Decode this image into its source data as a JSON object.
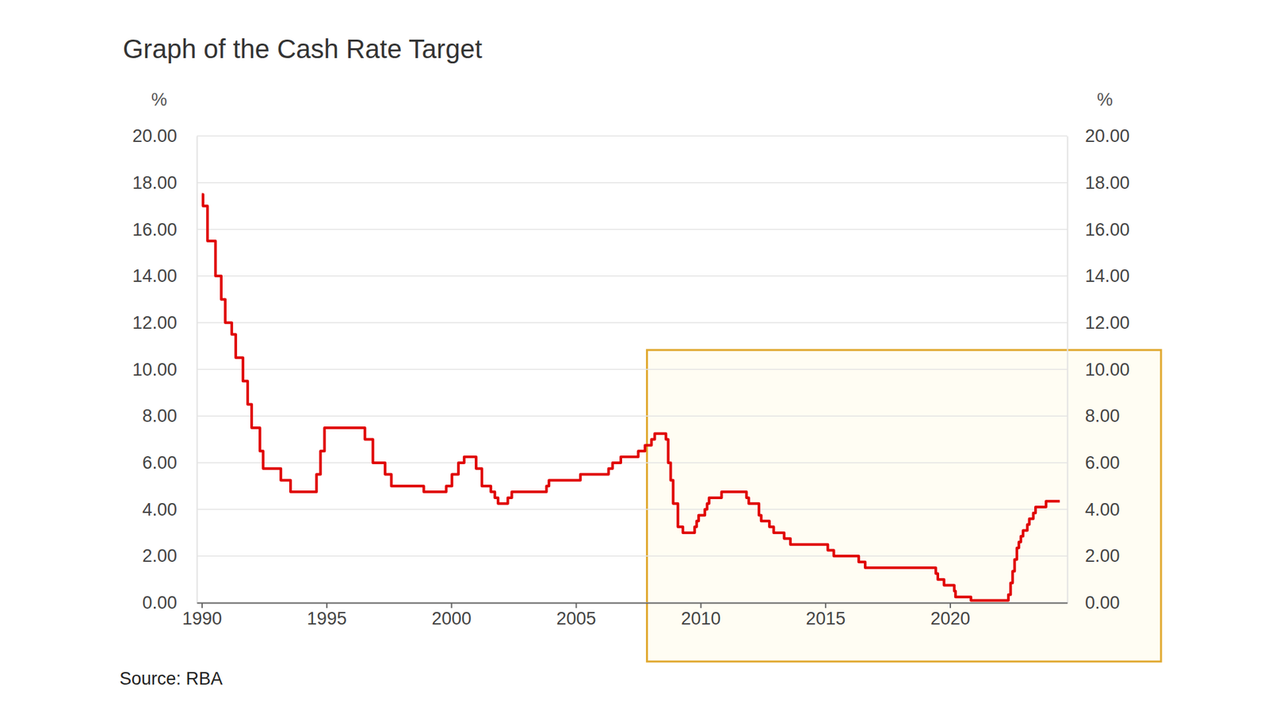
{
  "chart_data": {
    "type": "line",
    "title": "Graph of the Cash Rate Target",
    "source": "Source: RBA",
    "y_label": "%",
    "y2_label": "%",
    "color": "#e00000",
    "line_style": "step",
    "grid": true,
    "x": [
      1990.0,
      1990.05,
      1990.23,
      1990.55,
      1990.78,
      1990.94,
      1991.2,
      1991.36,
      1991.65,
      1991.84,
      1992.0,
      1992.33,
      1992.46,
      1993.17,
      1993.56,
      1994.6,
      1994.76,
      1994.92,
      1996.54,
      1996.86,
      1997.35,
      1997.6,
      1998.9,
      1999.8,
      2000.03,
      2000.29,
      2000.52,
      2001.0,
      2001.23,
      2001.59,
      2001.75,
      2001.88,
      2002.27,
      2002.43,
      2003.82,
      2003.92,
      2005.18,
      2006.31,
      2006.47,
      2006.8,
      2007.5,
      2007.77,
      2008.03,
      2008.16,
      2008.61,
      2008.7,
      2008.8,
      2008.9,
      2009.09,
      2009.29,
      2009.76,
      2009.84,
      2009.92,
      2010.17,
      2010.26,
      2010.34,
      2010.84,
      2011.84,
      2011.93,
      2012.34,
      2012.43,
      2012.76,
      2012.93,
      2013.35,
      2013.6,
      2015.1,
      2015.34,
      2016.34,
      2016.6,
      2019.43,
      2019.51,
      2019.76,
      2020.17,
      2020.22,
      2020.84,
      2022.34,
      2022.43,
      2022.51,
      2022.59,
      2022.68,
      2022.76,
      2022.84,
      2022.93,
      2023.1,
      2023.18,
      2023.34,
      2023.43,
      2023.85,
      2024.4
    ],
    "values": [
      17.5,
      17.0,
      15.5,
      14.0,
      13.0,
      12.0,
      11.5,
      10.5,
      9.5,
      8.5,
      7.5,
      6.5,
      5.75,
      5.25,
      4.75,
      5.5,
      6.5,
      7.5,
      7.0,
      6.0,
      5.5,
      5.0,
      4.75,
      5.0,
      5.5,
      6.0,
      6.25,
      5.75,
      5.0,
      4.75,
      4.5,
      4.25,
      4.5,
      4.75,
      5.0,
      5.25,
      5.5,
      5.75,
      6.0,
      6.25,
      6.5,
      6.75,
      7.0,
      7.25,
      7.0,
      6.0,
      5.25,
      4.25,
      3.25,
      3.0,
      3.25,
      3.5,
      3.75,
      4.0,
      4.25,
      4.5,
      4.75,
      4.5,
      4.25,
      3.75,
      3.5,
      3.25,
      3.0,
      2.75,
      2.5,
      2.25,
      2.0,
      1.75,
      1.5,
      1.25,
      1.0,
      0.75,
      0.5,
      0.25,
      0.1,
      0.35,
      0.85,
      1.35,
      1.85,
      2.35,
      2.6,
      2.85,
      3.1,
      3.35,
      3.6,
      3.85,
      4.1,
      4.35,
      4.35
    ],
    "xlim": [
      1989.8,
      2024.7
    ],
    "xticks": [
      1990,
      1995,
      2000,
      2005,
      2010,
      2015,
      2020
    ],
    "ylim": [
      0,
      20
    ],
    "yticks": [
      {
        "value": 0,
        "label": "0.00"
      },
      {
        "value": 2,
        "label": "2.00"
      },
      {
        "value": 4,
        "label": "4.00"
      },
      {
        "value": 6,
        "label": "6.00"
      },
      {
        "value": 8,
        "label": "8.00"
      },
      {
        "value": 10,
        "label": "10.00"
      },
      {
        "value": 12,
        "label": "12.00"
      },
      {
        "value": 14,
        "label": "14.00"
      },
      {
        "value": 16,
        "label": "16.00"
      },
      {
        "value": 18,
        "label": "18.00"
      },
      {
        "value": 20,
        "label": "20.00"
      }
    ],
    "y2lim": [
      0,
      20
    ],
    "y2ticks": [
      {
        "value": 0,
        "label": "0.00"
      },
      {
        "value": 2,
        "label": "2.00"
      },
      {
        "value": 4,
        "label": "4.00"
      },
      {
        "value": 6,
        "label": "6.00"
      },
      {
        "value": 8,
        "label": "8.00"
      },
      {
        "value": 10,
        "label": "10.00"
      },
      {
        "value": 12,
        "label": "12.00"
      },
      {
        "value": 14,
        "label": "14.00"
      },
      {
        "value": 16,
        "label": "16.00"
      },
      {
        "value": 18,
        "label": "18.00"
      },
      {
        "value": 20,
        "label": "20.00"
      }
    ],
    "highlight": {
      "x0": 2007.85,
      "y1": 10.83
    }
  }
}
